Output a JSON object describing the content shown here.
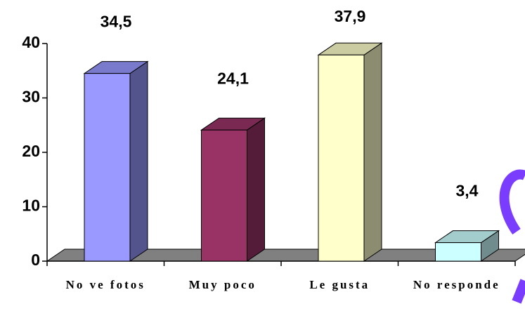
{
  "chart_data": {
    "type": "bar",
    "categories": [
      "No ve fotos",
      "Muy poco",
      "Le gusta",
      "No responde"
    ],
    "values": [
      34.5,
      24.1,
      37.9,
      3.4
    ],
    "value_labels": [
      "34,5",
      "24,1",
      "37,9",
      "3,4"
    ],
    "colors": [
      "#9999ff",
      "#993366",
      "#ffffcc",
      "#ccffff"
    ],
    "ylim": [
      0,
      40
    ],
    "yticks": [
      0,
      10,
      20,
      30,
      40
    ]
  }
}
